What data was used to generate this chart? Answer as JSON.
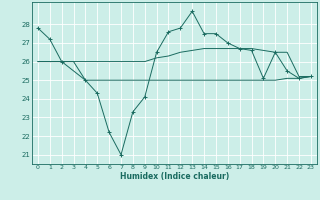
{
  "xlabel": "Humidex (Indice chaleur)",
  "bg_color": "#cceee8",
  "line_color": "#1a6b60",
  "grid_color": "#b0ddd5",
  "x": [
    0,
    1,
    2,
    3,
    4,
    5,
    6,
    7,
    8,
    9,
    10,
    11,
    12,
    13,
    14,
    15,
    16,
    17,
    18,
    19,
    20,
    21,
    22,
    23
  ],
  "series1": [
    27.8,
    27.2,
    26.0,
    null,
    25.0,
    24.3,
    22.2,
    21.0,
    23.3,
    24.1,
    26.5,
    27.6,
    27.8,
    28.7,
    27.5,
    27.5,
    27.0,
    26.7,
    26.6,
    25.1,
    26.5,
    25.5,
    25.1,
    25.2
  ],
  "series2": [
    26.0,
    26.0,
    26.0,
    26.0,
    25.0,
    25.0,
    25.0,
    25.0,
    25.0,
    25.0,
    25.0,
    25.0,
    25.0,
    25.0,
    25.0,
    25.0,
    25.0,
    25.0,
    25.0,
    25.0,
    25.0,
    25.1,
    25.1,
    25.2
  ],
  "series3": [
    26.0,
    26.0,
    26.0,
    26.0,
    26.0,
    26.0,
    26.0,
    26.0,
    26.0,
    26.0,
    26.2,
    26.3,
    26.5,
    26.6,
    26.7,
    26.7,
    26.7,
    26.7,
    26.7,
    26.6,
    26.5,
    26.5,
    25.2,
    25.2
  ],
  "ylim": [
    20.5,
    29.2
  ],
  "yticks": [
    21,
    22,
    23,
    24,
    25,
    26,
    27,
    28
  ],
  "xticks": [
    0,
    1,
    2,
    3,
    4,
    5,
    6,
    7,
    8,
    9,
    10,
    11,
    12,
    13,
    14,
    15,
    16,
    17,
    18,
    19,
    20,
    21,
    22,
    23
  ]
}
